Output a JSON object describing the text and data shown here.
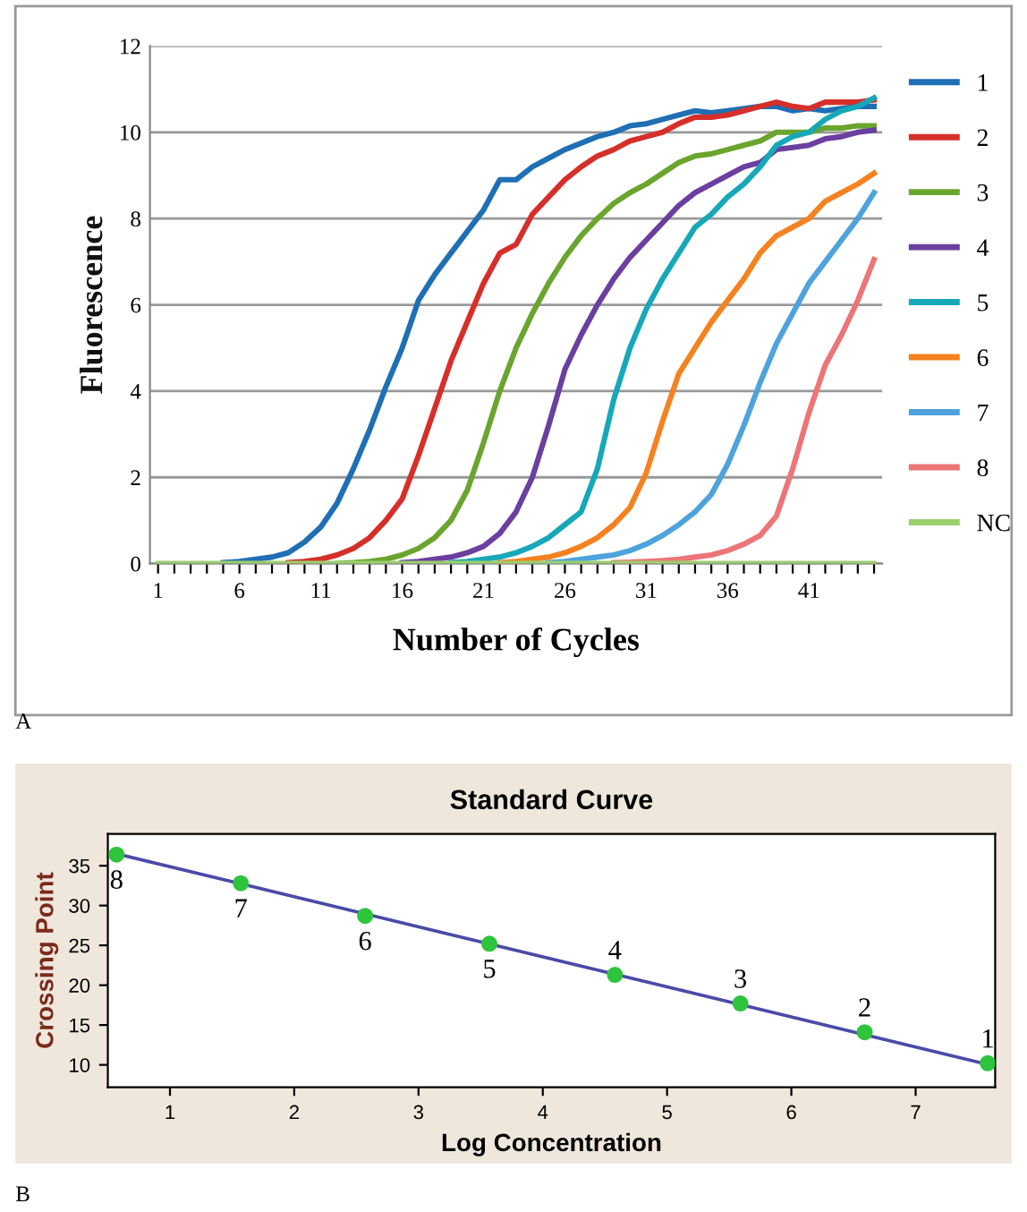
{
  "chart_data": [
    {
      "type": "line",
      "xlabel": "Number of Cycles",
      "ylabel": "Fluorescence",
      "annotations": [
        "A"
      ],
      "x": [
        1,
        2,
        3,
        4,
        5,
        6,
        7,
        8,
        9,
        10,
        11,
        12,
        13,
        14,
        15,
        16,
        17,
        18,
        19,
        20,
        21,
        22,
        23,
        24,
        25,
        26,
        27,
        28,
        29,
        30,
        31,
        32,
        33,
        34,
        35,
        36,
        37,
        38,
        39,
        40,
        41,
        42,
        43,
        44,
        45
      ],
      "xlim": [
        0.5,
        45.5
      ],
      "xticks": [
        1,
        {
          "value": 2,
          "label": null
        },
        {
          "value": 3,
          "label": null
        },
        {
          "value": 4,
          "label": null
        },
        {
          "value": 5,
          "label": null
        },
        6,
        {
          "value": 7,
          "label": null
        },
        {
          "value": 8,
          "label": null
        },
        {
          "value": 9,
          "label": null
        },
        {
          "value": 10,
          "label": null
        },
        11,
        {
          "value": 12,
          "label": null
        },
        {
          "value": 13,
          "label": null
        },
        {
          "value": 14,
          "label": null
        },
        {
          "value": 15,
          "label": null
        },
        16,
        {
          "value": 17,
          "label": null
        },
        {
          "value": 18,
          "label": null
        },
        {
          "value": 19,
          "label": null
        },
        {
          "value": 20,
          "label": null
        },
        21,
        {
          "value": 22,
          "label": null
        },
        {
          "value": 23,
          "label": null
        },
        {
          "value": 24,
          "label": null
        },
        {
          "value": 25,
          "label": null
        },
        26,
        {
          "value": 27,
          "label": null
        },
        {
          "value": 28,
          "label": null
        },
        {
          "value": 29,
          "label": null
        },
        {
          "value": 30,
          "label": null
        },
        31,
        {
          "value": 32,
          "label": null
        },
        {
          "value": 33,
          "label": null
        },
        {
          "value": 34,
          "label": null
        },
        {
          "value": 35,
          "label": null
        },
        36,
        {
          "value": 37,
          "label": null
        },
        {
          "value": 38,
          "label": null
        },
        {
          "value": 39,
          "label": null
        },
        {
          "value": 40,
          "label": null
        },
        41,
        {
          "value": 42,
          "label": null
        },
        {
          "value": 43,
          "label": null
        },
        {
          "value": 44,
          "label": null
        },
        {
          "value": 45,
          "label": null
        }
      ],
      "ylim": [
        0,
        12
      ],
      "yticks": [
        0,
        2,
        4,
        6,
        8,
        10,
        12
      ],
      "grid": "y",
      "legend": "right",
      "series": [
        {
          "name": "1",
          "color": "#1f6fb4",
          "values": [
            null,
            null,
            null,
            null,
            0.02,
            0.05,
            0.1,
            0.15,
            0.25,
            0.5,
            0.85,
            1.4,
            2.2,
            3.1,
            4.1,
            5.0,
            6.1,
            6.7,
            7.2,
            7.7,
            8.2,
            8.9,
            8.9,
            9.2,
            9.4,
            9.6,
            9.75,
            9.9,
            10.0,
            10.15,
            10.2,
            10.3,
            10.4,
            10.5,
            10.45,
            10.5,
            10.55,
            10.6,
            10.6,
            10.5,
            10.55,
            10.5,
            10.55,
            10.6,
            10.6
          ]
        },
        {
          "name": "2",
          "color": "#d62f2a",
          "values": [
            null,
            null,
            null,
            null,
            null,
            null,
            null,
            null,
            0.02,
            0.05,
            0.1,
            0.2,
            0.35,
            0.6,
            1.0,
            1.5,
            2.5,
            3.6,
            4.7,
            5.6,
            6.5,
            7.2,
            7.4,
            8.1,
            8.5,
            8.9,
            9.2,
            9.45,
            9.6,
            9.8,
            9.9,
            10.0,
            10.2,
            10.35,
            10.35,
            10.4,
            10.5,
            10.6,
            10.7,
            10.6,
            10.55,
            10.7,
            10.7,
            10.7,
            10.75
          ]
        },
        {
          "name": "3",
          "color": "#6aa52e",
          "values": [
            null,
            null,
            null,
            null,
            null,
            null,
            null,
            null,
            null,
            null,
            null,
            0,
            0.02,
            0.05,
            0.1,
            0.2,
            0.35,
            0.6,
            1.0,
            1.7,
            2.8,
            4.0,
            5.0,
            5.8,
            6.5,
            7.1,
            7.6,
            8.0,
            8.35,
            8.6,
            8.8,
            9.05,
            9.3,
            9.45,
            9.5,
            9.6,
            9.7,
            9.8,
            10.0,
            10.0,
            10.0,
            10.1,
            10.1,
            10.15,
            10.15
          ]
        },
        {
          "name": "4",
          "color": "#6b3fa0",
          "values": [
            null,
            null,
            null,
            null,
            null,
            null,
            null,
            null,
            null,
            null,
            null,
            null,
            null,
            null,
            null,
            0.02,
            0.05,
            0.1,
            0.15,
            0.25,
            0.4,
            0.7,
            1.2,
            2.0,
            3.2,
            4.5,
            5.3,
            6.0,
            6.6,
            7.1,
            7.5,
            7.9,
            8.3,
            8.6,
            8.8,
            9.0,
            9.2,
            9.3,
            9.6,
            9.65,
            9.7,
            9.85,
            9.9,
            10.0,
            10.05
          ]
        },
        {
          "name": "5",
          "color": "#16a8b8",
          "values": [
            null,
            null,
            null,
            null,
            null,
            null,
            null,
            null,
            null,
            null,
            null,
            null,
            null,
            null,
            null,
            null,
            null,
            null,
            0.02,
            0.05,
            0.1,
            0.15,
            0.25,
            0.4,
            0.6,
            0.9,
            1.2,
            2.2,
            3.8,
            5.0,
            5.9,
            6.6,
            7.2,
            7.8,
            8.1,
            8.5,
            8.8,
            9.2,
            9.7,
            9.9,
            10.0,
            10.3,
            10.5,
            10.6,
            10.8
          ]
        },
        {
          "name": "6",
          "color": "#f58220",
          "values": [
            null,
            null,
            null,
            null,
            null,
            null,
            null,
            null,
            null,
            null,
            null,
            null,
            null,
            null,
            null,
            null,
            null,
            null,
            null,
            null,
            null,
            0.02,
            0.05,
            0.1,
            0.15,
            0.25,
            0.4,
            0.6,
            0.9,
            1.3,
            2.1,
            3.3,
            4.4,
            5.0,
            5.6,
            6.1,
            6.6,
            7.2,
            7.6,
            7.8,
            8.0,
            8.4,
            8.6,
            8.8,
            9.05
          ]
        },
        {
          "name": "7",
          "color": "#4ea3dc",
          "values": [
            null,
            null,
            null,
            null,
            null,
            null,
            null,
            null,
            null,
            null,
            null,
            null,
            null,
            null,
            null,
            null,
            null,
            null,
            null,
            null,
            null,
            null,
            null,
            null,
            0.02,
            0.05,
            0.1,
            0.15,
            0.2,
            0.3,
            0.45,
            0.65,
            0.9,
            1.2,
            1.6,
            2.3,
            3.2,
            4.2,
            5.1,
            5.8,
            6.5,
            7.0,
            7.5,
            8.0,
            8.6
          ]
        },
        {
          "name": "8",
          "color": "#ec7578",
          "values": [
            null,
            null,
            null,
            null,
            null,
            null,
            null,
            null,
            null,
            null,
            null,
            null,
            null,
            null,
            null,
            null,
            null,
            null,
            null,
            null,
            null,
            null,
            null,
            null,
            null,
            null,
            null,
            null,
            0.02,
            0.03,
            0.05,
            0.07,
            0.1,
            0.15,
            0.2,
            0.3,
            0.45,
            0.65,
            1.1,
            2.2,
            3.5,
            4.6,
            5.3,
            6.1,
            7.05
          ]
        },
        {
          "name": "NC",
          "color": "#9ccf6e",
          "values": [
            0,
            0,
            0,
            0,
            0,
            0,
            0,
            0,
            0,
            0,
            0,
            0,
            0,
            0,
            0,
            0,
            0,
            0,
            0,
            0,
            0,
            0,
            0,
            0,
            0,
            0,
            0,
            0,
            0,
            0,
            0,
            0,
            0,
            0,
            0,
            0,
            0,
            0,
            0,
            0,
            0,
            0,
            0,
            0,
            0
          ]
        }
      ]
    },
    {
      "type": "scatter",
      "title": "Standard Curve",
      "xlabel": "Log Concentration",
      "ylabel": "Crossing Point",
      "xlim": [
        0.5,
        7.64
      ],
      "xticks": [
        1,
        2,
        3,
        4,
        5,
        6,
        7
      ],
      "ylim": [
        7.2,
        39
      ],
      "yticks": [
        10,
        15,
        20,
        25,
        30,
        35
      ],
      "grid": false,
      "legend": false,
      "series": [
        {
          "type": "line",
          "color": "#4a4aa8",
          "x": [
            0.57,
            7.57
          ],
          "values": [
            36.5,
            10.1
          ]
        },
        {
          "type": "scatter",
          "marker": "circle",
          "color": "#2ec43c",
          "x": [
            0.57,
            1.57,
            2.57,
            3.57,
            4.58,
            5.59,
            6.59,
            7.58
          ],
          "values": [
            36.4,
            32.8,
            28.7,
            25.2,
            21.3,
            17.7,
            14.1,
            10.2
          ]
        }
      ],
      "annotations": [
        {
          "text": "8",
          "x": 0.57,
          "y": 36.4
        },
        {
          "text": "7",
          "x": 1.57,
          "y": 32.8
        },
        {
          "text": "6",
          "x": 2.57,
          "y": 28.7
        },
        {
          "text": "5",
          "x": 3.57,
          "y": 25.2
        },
        {
          "text": "4",
          "x": 4.58,
          "y": 21.3
        },
        {
          "text": "3",
          "x": 5.59,
          "y": 17.7
        },
        {
          "text": "2",
          "x": 6.59,
          "y": 14.1
        },
        {
          "text": "1",
          "x": 7.58,
          "y": 10.2
        },
        "B"
      ]
    }
  ]
}
